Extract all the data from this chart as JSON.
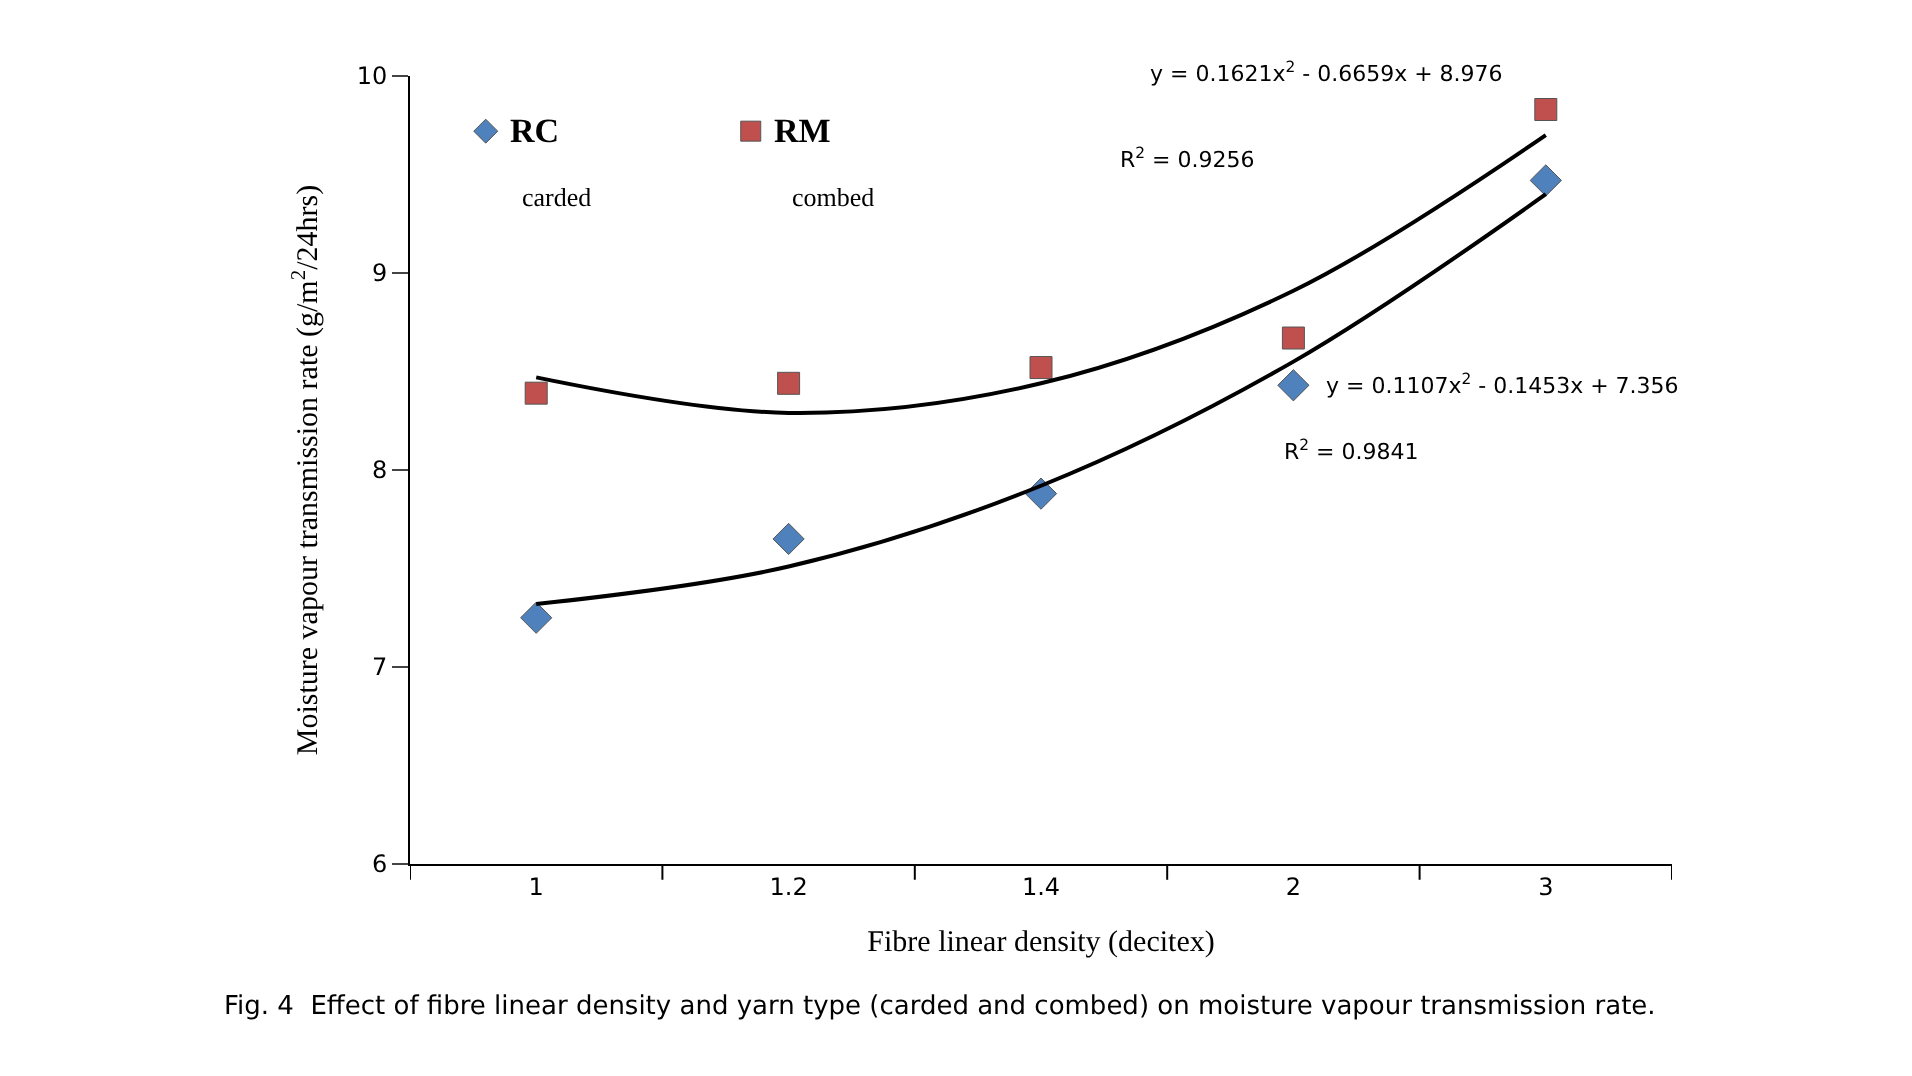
{
  "chart_data": {
    "type": "scatter",
    "ylabel": "Moisture vapour transmission rate (g/m$^{2}$/24hrs)",
    "xlabel": "Fibre linear density (decitex)",
    "categories": [
      "1",
      "1.2",
      "1.4",
      "2",
      "3"
    ],
    "series": [
      {
        "name": "RC",
        "color": "#4f81bd",
        "marker": "diamond",
        "values": [
          7.25,
          7.65,
          7.88,
          8.43,
          9.47
        ]
      },
      {
        "name": "RM",
        "color": "#c0504d",
        "marker": "square",
        "values": [
          8.39,
          8.44,
          8.52,
          8.67,
          9.83
        ]
      },
      {
        "type": "line",
        "color": "#000000",
        "marker": "none",
        "values": [
          7.32,
          7.51,
          7.92,
          8.55,
          9.4
        ]
      },
      {
        "type": "line",
        "color": "#000000",
        "marker": "none",
        "values": [
          8.47,
          8.29,
          8.44,
          8.91,
          9.7
        ]
      }
    ],
    "ylim": [
      6,
      10
    ],
    "yticks": [
      6,
      7,
      8,
      9,
      10
    ],
    "legend": "top left",
    "annotations": [
      {
        "text": "y = 0.1621x$^{2}$ - 0.6659x + 8.976",
        "x": "3",
        "y": 9.7
      },
      "R$^{2}$ = 0.9256",
      {
        "text": "y = 0.1107x$^{2}$ - 0.1453x + 7.356",
        "x": "2",
        "y": 8.43
      },
      "R$^{2}$ = 0.9841",
      "carded",
      "combed",
      "Fig. 4  Effect of fibre linear density and yarn type (carded and combed) on moisture vapour transmission rate."
    ]
  }
}
